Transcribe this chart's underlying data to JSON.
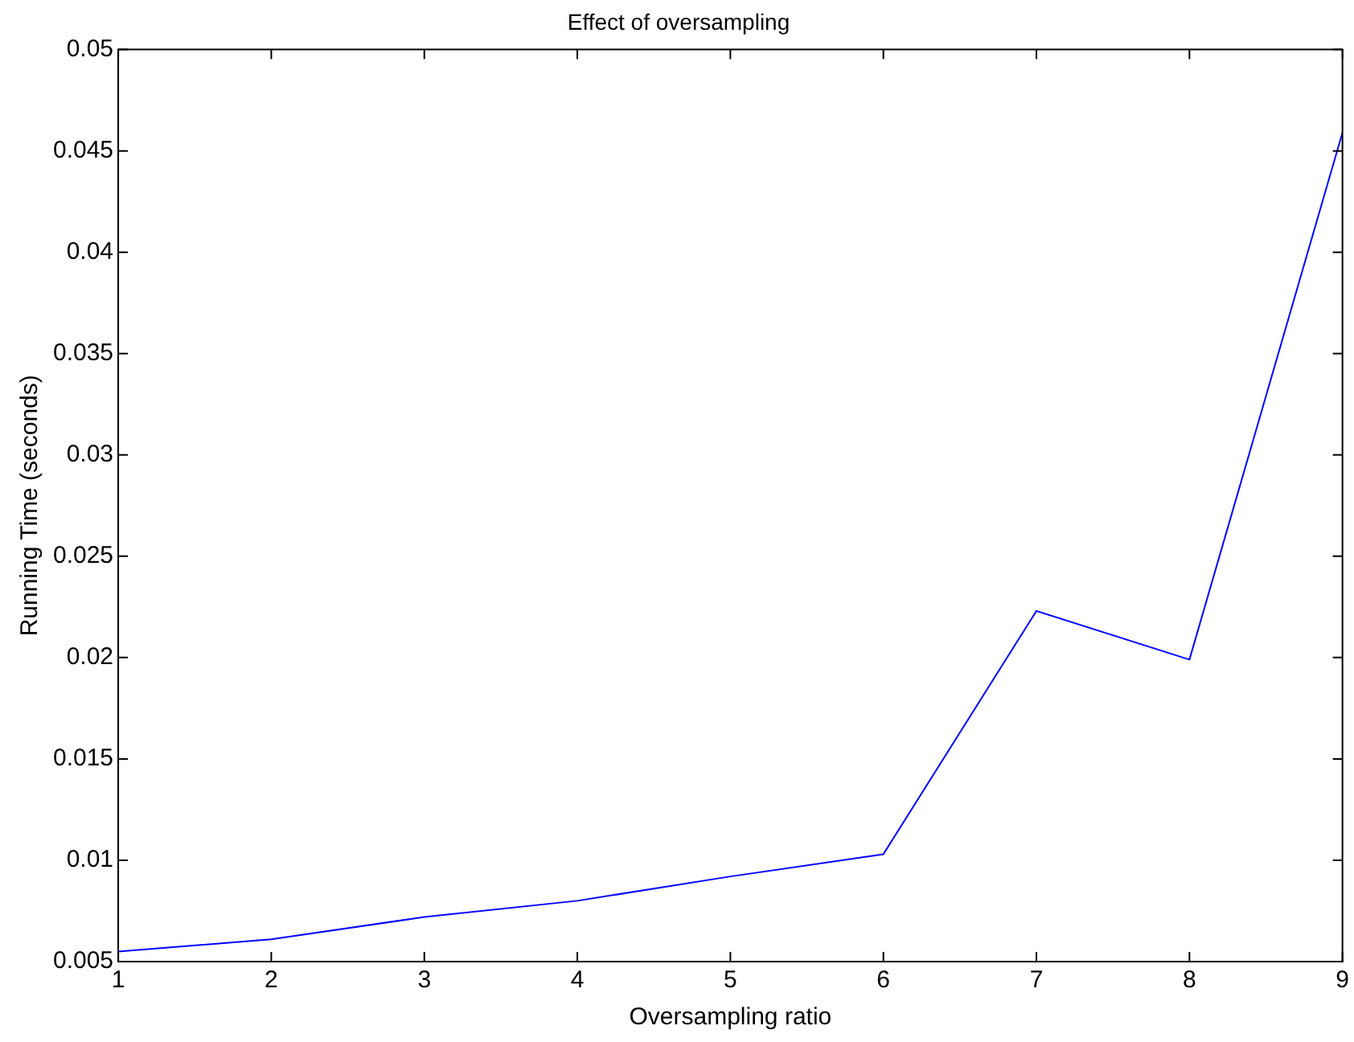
{
  "chart_data": {
    "type": "line",
    "title": "Effect of oversampling",
    "xlabel": "Oversampling ratio",
    "ylabel": "Running Time (seconds)",
    "x": [
      1,
      2,
      3,
      4,
      5,
      6,
      7,
      8,
      9
    ],
    "series": [
      {
        "color": "#0000ff",
        "values": [
          0.0055,
          0.0061,
          0.0072,
          0.008,
          0.0092,
          0.0103,
          0.0223,
          0.0199,
          0.0459
        ]
      }
    ],
    "xlim": [
      1,
      9
    ],
    "xticks": [
      1,
      2,
      3,
      4,
      5,
      6,
      7,
      8,
      9
    ],
    "ylim": [
      0.005,
      0.05
    ],
    "yticks": [
      0.005,
      0.01,
      0.015,
      0.02,
      0.025,
      0.03,
      0.035,
      0.04,
      0.045,
      0.05
    ],
    "grid": false,
    "legend": false,
    "marker": "none",
    "line_style": "solid"
  }
}
